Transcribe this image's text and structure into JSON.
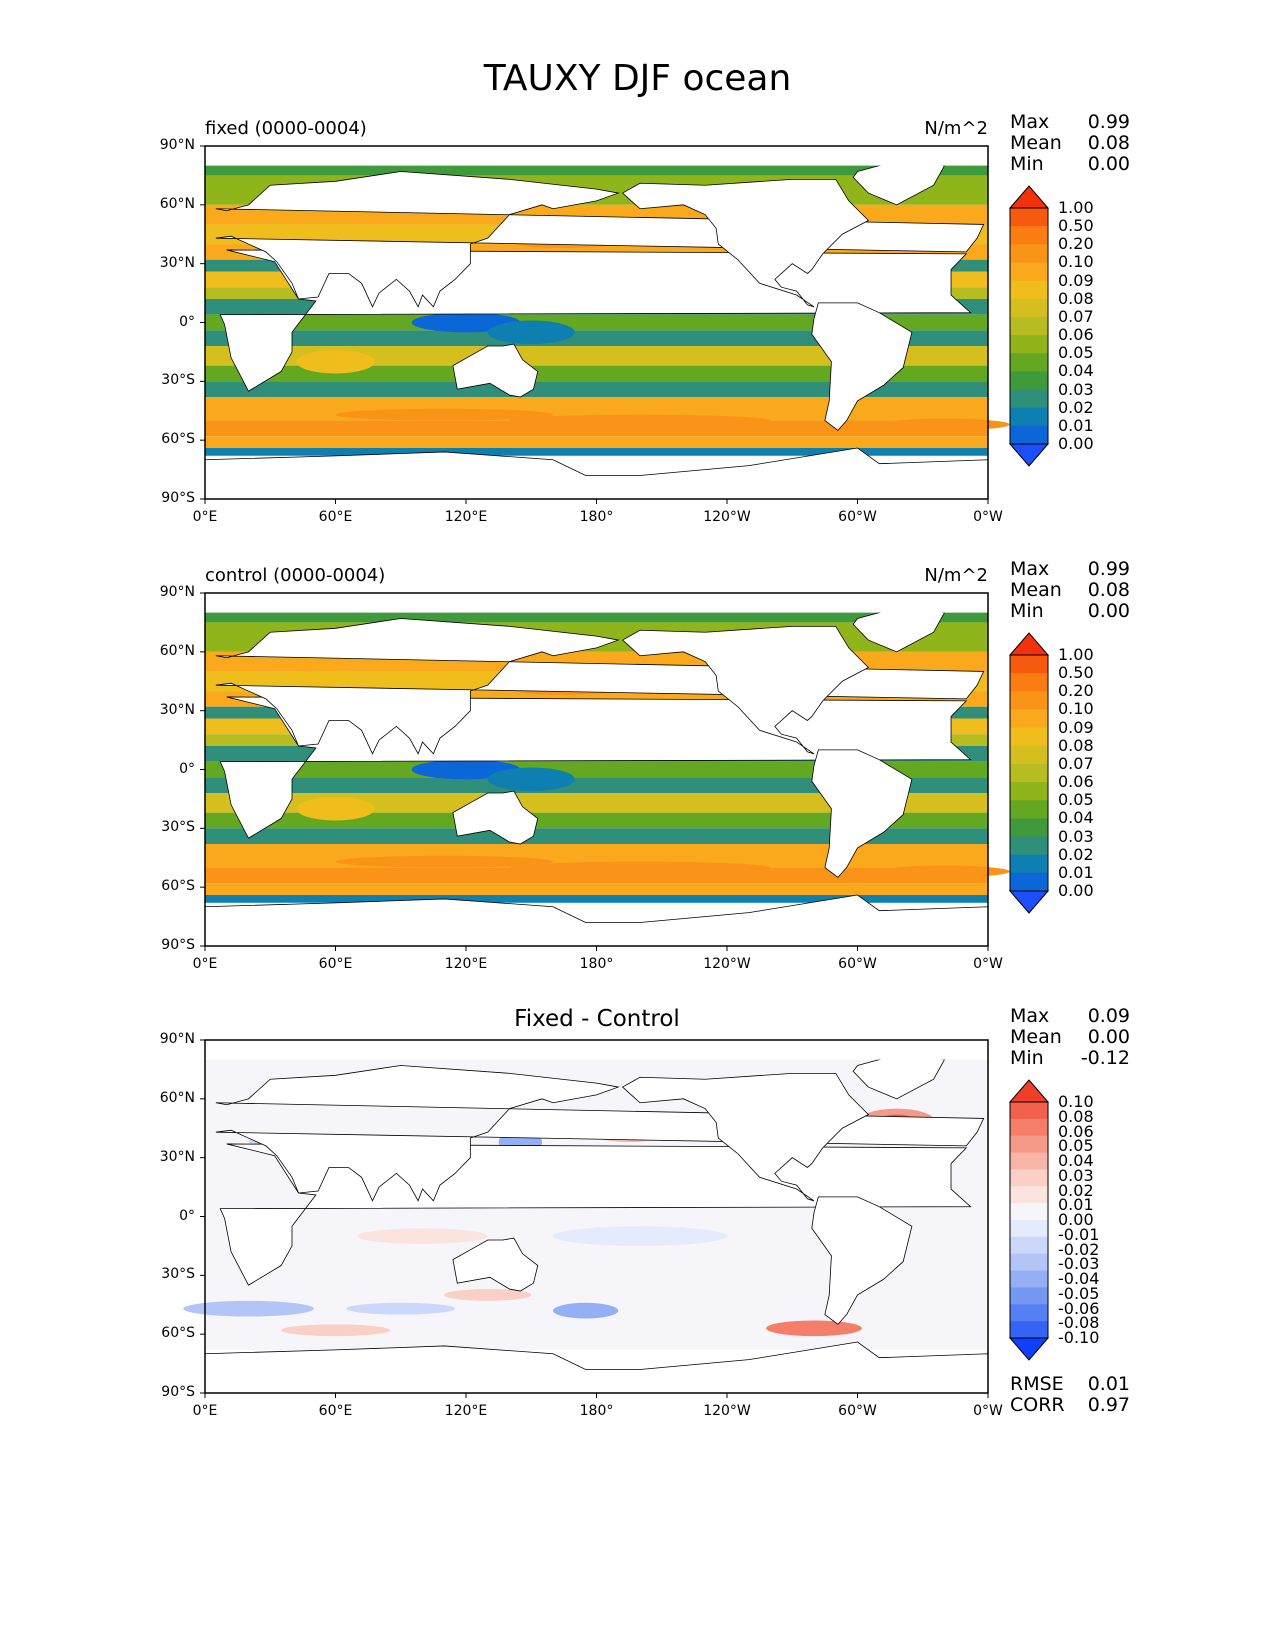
{
  "figure_title": "TAUXY DJF ocean",
  "colors": {
    "field_scale": [
      "#1b4fff",
      "#0b66d8",
      "#0d7fb0",
      "#2f8f7a",
      "#3f9a3c",
      "#64a821",
      "#8fb51a",
      "#b7bd20",
      "#d4bf1e",
      "#efbd1c",
      "#f9a91b",
      "#f99419",
      "#fa7d12",
      "#f75a0e",
      "#f2320a"
    ],
    "diff_scale": [
      "#1040ff",
      "#3564f5",
      "#5580f3",
      "#7598f3",
      "#95aff5",
      "#b3c5f7",
      "#ccd8fa",
      "#e3ebfc",
      "#f6f6fa",
      "#fbe4e0",
      "#f9cfc6",
      "#f7b5a8",
      "#f59a89",
      "#f37e6a",
      "#f1614b",
      "#ef3f26"
    ],
    "land": "#ffffff",
    "coast": "#000000"
  },
  "axes": {
    "xticks": [
      "0°E",
      "60°E",
      "120°E",
      "180°",
      "120°W",
      "60°W",
      "0°W"
    ],
    "yticks": [
      "90°N",
      "60°N",
      "30°N",
      "0°",
      "30°S",
      "60°S",
      "90°S"
    ]
  },
  "panels": [
    {
      "title_left": "fixed (0000-0004)",
      "units": "N/m^2",
      "stats": [
        {
          "name": "Max",
          "value": "0.99"
        },
        {
          "name": "Mean",
          "value": "0.08"
        },
        {
          "name": "Min",
          "value": "0.00"
        }
      ],
      "colorbar_labels": [
        "1.00",
        "0.50",
        "0.20",
        "0.10",
        "0.09",
        "0.08",
        "0.07",
        "0.06",
        "0.05",
        "0.04",
        "0.03",
        "0.02",
        "0.01",
        "0.00"
      ]
    },
    {
      "title_left": "control (0000-0004)",
      "units": "N/m^2",
      "stats": [
        {
          "name": "Max",
          "value": "0.99"
        },
        {
          "name": "Mean",
          "value": "0.08"
        },
        {
          "name": "Min",
          "value": "0.00"
        }
      ],
      "colorbar_labels": [
        "1.00",
        "0.50",
        "0.20",
        "0.10",
        "0.09",
        "0.08",
        "0.07",
        "0.06",
        "0.05",
        "0.04",
        "0.03",
        "0.02",
        "0.01",
        "0.00"
      ]
    },
    {
      "title_center": "Fixed - Control",
      "stats": [
        {
          "name": "Max",
          "value": "0.09"
        },
        {
          "name": "Mean",
          "value": "0.00"
        },
        {
          "name": "Min",
          "value": "-0.12"
        }
      ],
      "colorbar_labels": [
        "0.10",
        "0.08",
        "0.06",
        "0.05",
        "0.04",
        "0.03",
        "0.02",
        "0.01",
        "0.00",
        "-0.01",
        "-0.02",
        "-0.03",
        "-0.04",
        "-0.05",
        "-0.06",
        "-0.08",
        "-0.10"
      ],
      "extra_stats": [
        {
          "name": "RMSE",
          "value": "0.01"
        },
        {
          "name": "CORR",
          "value": "0.97"
        }
      ]
    }
  ],
  "chart_data": [
    {
      "type": "heatmap",
      "title": "fixed (0000-0004)",
      "units": "N/m^2",
      "x_range": [
        "0°E",
        "0°W"
      ],
      "y_range": [
        "90°S",
        "90°N"
      ],
      "levels": [
        0.0,
        0.01,
        0.02,
        0.03,
        0.04,
        0.05,
        0.06,
        0.07,
        0.08,
        0.09,
        0.1,
        0.2,
        0.5,
        1.0
      ],
      "stats": {
        "Max": 0.99,
        "Mean": 0.08,
        "Min": 0.0
      }
    },
    {
      "type": "heatmap",
      "title": "control (0000-0004)",
      "units": "N/m^2",
      "x_range": [
        "0°E",
        "0°W"
      ],
      "y_range": [
        "90°S",
        "90°N"
      ],
      "levels": [
        0.0,
        0.01,
        0.02,
        0.03,
        0.04,
        0.05,
        0.06,
        0.07,
        0.08,
        0.09,
        0.1,
        0.2,
        0.5,
        1.0
      ],
      "stats": {
        "Max": 0.99,
        "Mean": 0.08,
        "Min": 0.0
      }
    },
    {
      "type": "heatmap",
      "title": "Fixed - Control",
      "x_range": [
        "0°E",
        "0°W"
      ],
      "y_range": [
        "90°S",
        "90°N"
      ],
      "levels": [
        -0.1,
        -0.08,
        -0.06,
        -0.05,
        -0.04,
        -0.03,
        -0.02,
        -0.01,
        0.0,
        0.01,
        0.02,
        0.03,
        0.04,
        0.05,
        0.06,
        0.08,
        0.1
      ],
      "stats": {
        "Max": 0.09,
        "Mean": 0.0,
        "Min": -0.12,
        "RMSE": 0.01,
        "CORR": 0.97
      }
    }
  ]
}
